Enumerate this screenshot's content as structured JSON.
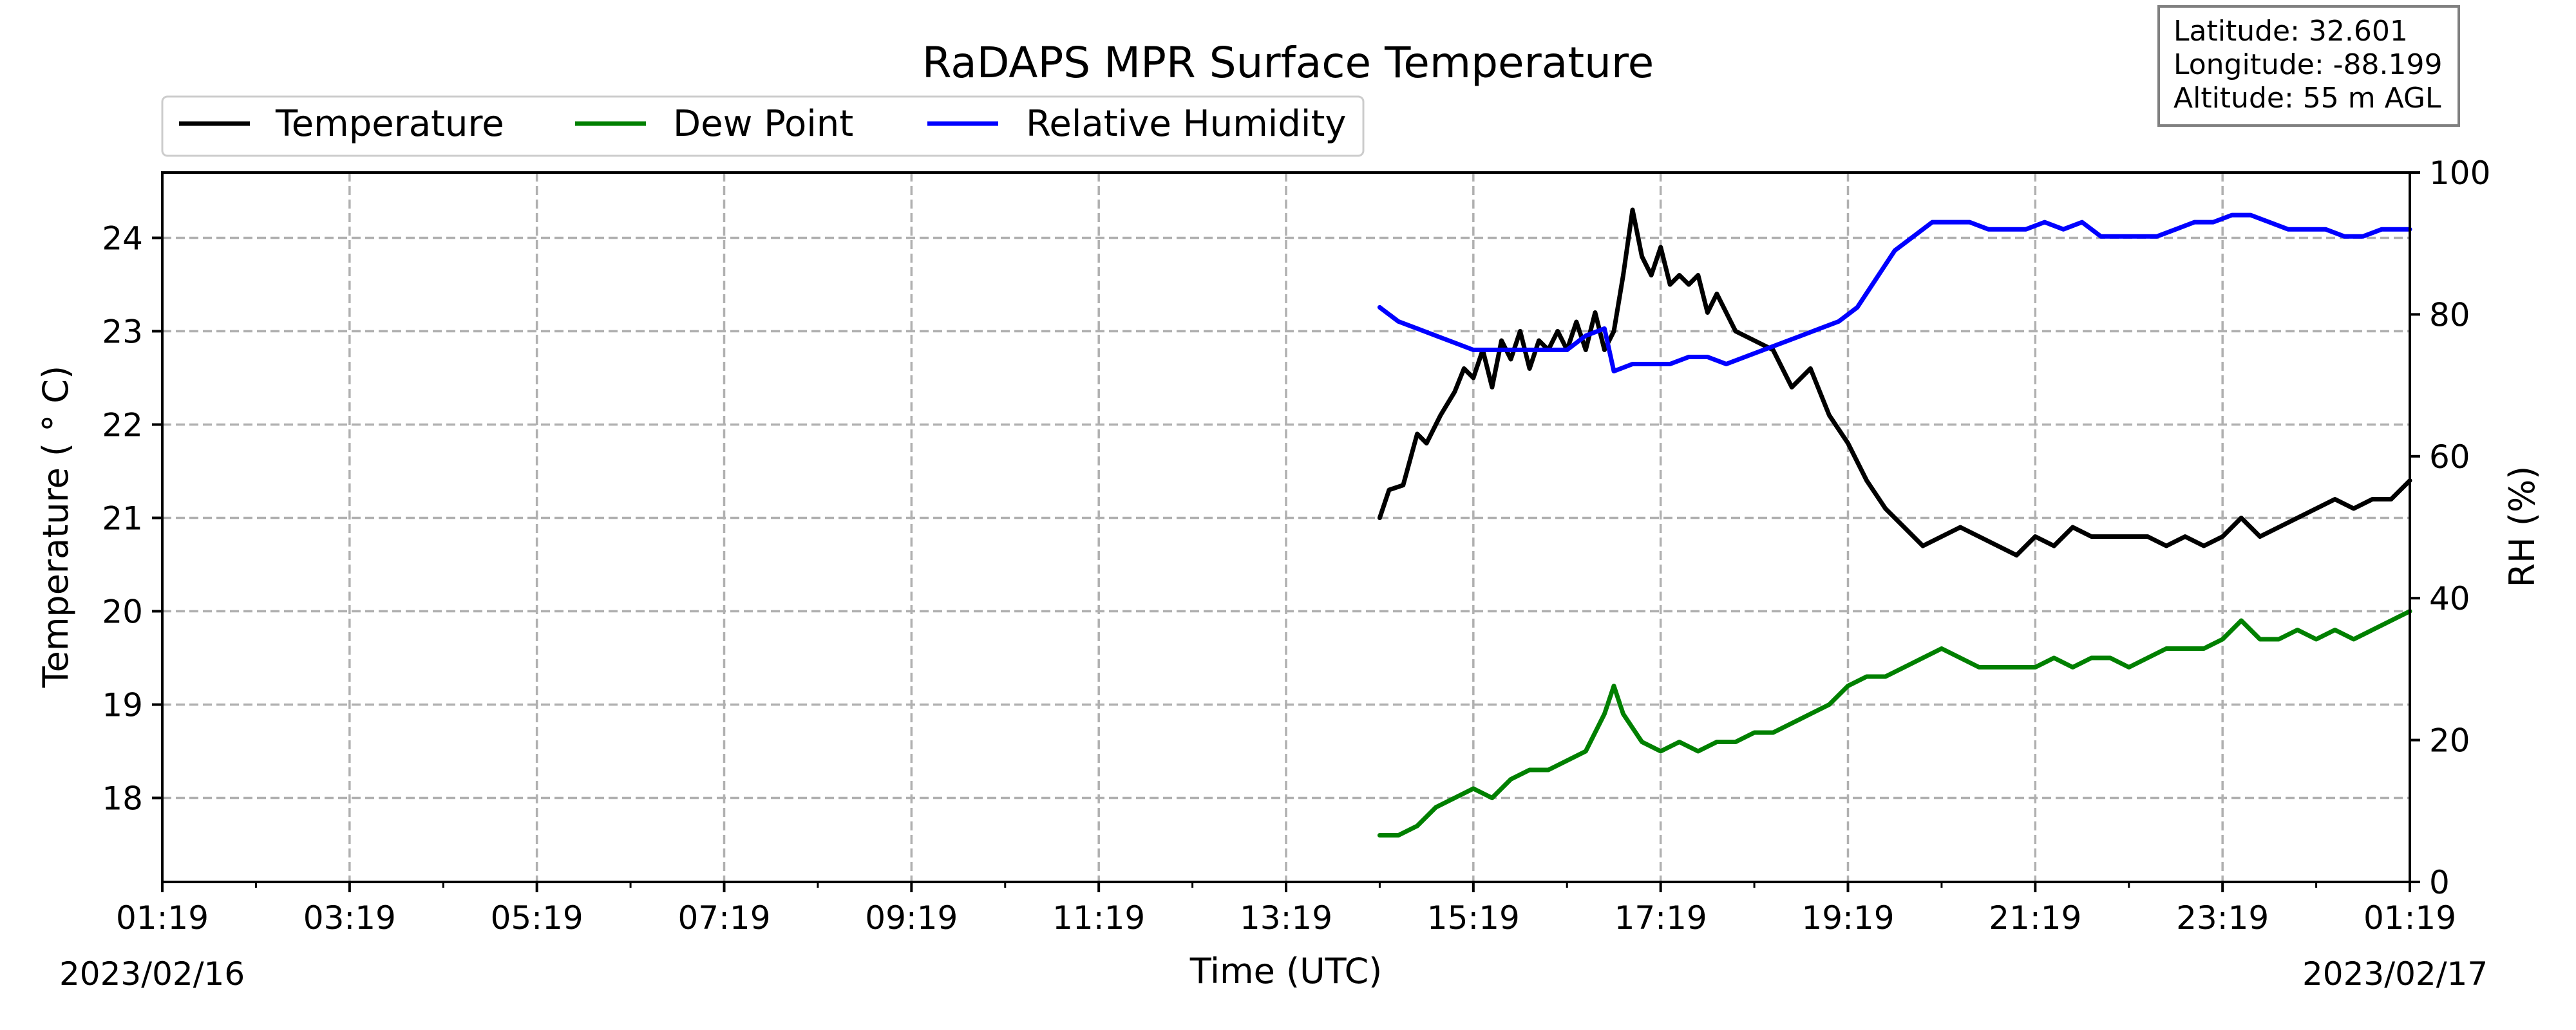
{
  "chart_data": {
    "type": "line",
    "title": "RaDAPS MPR Surface Temperature",
    "xlabel": "Time (UTC)",
    "ylabel": "Temperature ( $^\\circ$C)",
    "ylabel_display": "Temperature ( ° C)",
    "y2label": "RH (%)",
    "x_tick_labels": [
      "01:19",
      "03:19",
      "05:19",
      "07:19",
      "09:19",
      "11:19",
      "13:19",
      "15:19",
      "17:19",
      "19:19",
      "21:19",
      "23:19",
      "01:19"
    ],
    "x_start_date": "2023/02/16",
    "x_end_date": "2023/02/17",
    "xlim_hours": [
      0,
      24
    ],
    "ylim": [
      17.1,
      24.7
    ],
    "y_ticks": [
      "18",
      "19",
      "20",
      "21",
      "22",
      "23",
      "24"
    ],
    "y2lim": [
      0,
      100
    ],
    "y2_ticks": [
      "0",
      "20",
      "40",
      "60",
      "80",
      "100"
    ],
    "grid": true,
    "legend_position": "top-left, above plot",
    "info_box": [
      "Latitude: 32.601",
      "Longitude: -88.199",
      "Altitude: 55 m AGL"
    ],
    "series": [
      {
        "name": "Temperature",
        "color": "#000000",
        "axis": "left",
        "points": [
          [
            13.0,
            21.0
          ],
          [
            13.1,
            21.3
          ],
          [
            13.25,
            21.35
          ],
          [
            13.4,
            21.9
          ],
          [
            13.5,
            21.8
          ],
          [
            13.65,
            22.1
          ],
          [
            13.8,
            22.35
          ],
          [
            13.9,
            22.6
          ],
          [
            14.0,
            22.5
          ],
          [
            14.1,
            22.8
          ],
          [
            14.2,
            22.4
          ],
          [
            14.3,
            22.9
          ],
          [
            14.4,
            22.7
          ],
          [
            14.5,
            23.0
          ],
          [
            14.6,
            22.6
          ],
          [
            14.7,
            22.9
          ],
          [
            14.8,
            22.8
          ],
          [
            14.9,
            23.0
          ],
          [
            15.0,
            22.8
          ],
          [
            15.1,
            23.1
          ],
          [
            15.2,
            22.8
          ],
          [
            15.3,
            23.2
          ],
          [
            15.4,
            22.8
          ],
          [
            15.5,
            23.0
          ],
          [
            15.6,
            23.6
          ],
          [
            15.7,
            24.3
          ],
          [
            15.8,
            23.8
          ],
          [
            15.9,
            23.6
          ],
          [
            16.0,
            23.9
          ],
          [
            16.1,
            23.5
          ],
          [
            16.2,
            23.6
          ],
          [
            16.3,
            23.5
          ],
          [
            16.4,
            23.6
          ],
          [
            16.5,
            23.2
          ],
          [
            16.6,
            23.4
          ],
          [
            16.8,
            23.0
          ],
          [
            17.0,
            22.9
          ],
          [
            17.2,
            22.8
          ],
          [
            17.4,
            22.4
          ],
          [
            17.6,
            22.6
          ],
          [
            17.8,
            22.1
          ],
          [
            18.0,
            21.8
          ],
          [
            18.2,
            21.4
          ],
          [
            18.4,
            21.1
          ],
          [
            18.6,
            20.9
          ],
          [
            18.8,
            20.7
          ],
          [
            19.0,
            20.8
          ],
          [
            19.2,
            20.9
          ],
          [
            19.4,
            20.8
          ],
          [
            19.6,
            20.7
          ],
          [
            19.8,
            20.6
          ],
          [
            20.0,
            20.8
          ],
          [
            20.2,
            20.7
          ],
          [
            20.4,
            20.9
          ],
          [
            20.6,
            20.8
          ],
          [
            20.8,
            20.8
          ],
          [
            21.0,
            20.8
          ],
          [
            21.2,
            20.8
          ],
          [
            21.4,
            20.7
          ],
          [
            21.6,
            20.8
          ],
          [
            21.8,
            20.7
          ],
          [
            22.0,
            20.8
          ],
          [
            22.2,
            21.0
          ],
          [
            22.4,
            20.8
          ],
          [
            22.6,
            20.9
          ],
          [
            22.8,
            21.0
          ],
          [
            23.0,
            21.1
          ],
          [
            23.2,
            21.2
          ],
          [
            23.4,
            21.1
          ],
          [
            23.6,
            21.2
          ],
          [
            23.8,
            21.2
          ],
          [
            24.0,
            21.4
          ]
        ]
      },
      {
        "name": "Dew Point",
        "color": "#008000",
        "axis": "left",
        "points": [
          [
            13.0,
            17.6
          ],
          [
            13.2,
            17.6
          ],
          [
            13.4,
            17.7
          ],
          [
            13.6,
            17.9
          ],
          [
            13.8,
            18.0
          ],
          [
            14.0,
            18.1
          ],
          [
            14.2,
            18.0
          ],
          [
            14.4,
            18.2
          ],
          [
            14.6,
            18.3
          ],
          [
            14.8,
            18.3
          ],
          [
            15.0,
            18.4
          ],
          [
            15.2,
            18.5
          ],
          [
            15.4,
            18.9
          ],
          [
            15.5,
            19.2
          ],
          [
            15.6,
            18.9
          ],
          [
            15.8,
            18.6
          ],
          [
            16.0,
            18.5
          ],
          [
            16.2,
            18.6
          ],
          [
            16.4,
            18.5
          ],
          [
            16.6,
            18.6
          ],
          [
            16.8,
            18.6
          ],
          [
            17.0,
            18.7
          ],
          [
            17.2,
            18.7
          ],
          [
            17.4,
            18.8
          ],
          [
            17.6,
            18.9
          ],
          [
            17.8,
            19.0
          ],
          [
            18.0,
            19.2
          ],
          [
            18.2,
            19.3
          ],
          [
            18.4,
            19.3
          ],
          [
            18.6,
            19.4
          ],
          [
            18.8,
            19.5
          ],
          [
            19.0,
            19.6
          ],
          [
            19.2,
            19.5
          ],
          [
            19.4,
            19.4
          ],
          [
            19.6,
            19.4
          ],
          [
            19.8,
            19.4
          ],
          [
            20.0,
            19.4
          ],
          [
            20.2,
            19.5
          ],
          [
            20.4,
            19.4
          ],
          [
            20.6,
            19.5
          ],
          [
            20.8,
            19.5
          ],
          [
            21.0,
            19.4
          ],
          [
            21.2,
            19.5
          ],
          [
            21.4,
            19.6
          ],
          [
            21.6,
            19.6
          ],
          [
            21.8,
            19.6
          ],
          [
            22.0,
            19.7
          ],
          [
            22.2,
            19.9
          ],
          [
            22.4,
            19.7
          ],
          [
            22.6,
            19.7
          ],
          [
            22.8,
            19.8
          ],
          [
            23.0,
            19.7
          ],
          [
            23.2,
            19.8
          ],
          [
            23.4,
            19.7
          ],
          [
            23.6,
            19.8
          ],
          [
            23.8,
            19.9
          ],
          [
            24.0,
            20.0
          ]
        ]
      },
      {
        "name": "Relative Humidity",
        "color": "#0000ff",
        "axis": "right",
        "points": [
          [
            13.0,
            81
          ],
          [
            13.2,
            79
          ],
          [
            13.4,
            78
          ],
          [
            13.6,
            77
          ],
          [
            13.8,
            76
          ],
          [
            14.0,
            75
          ],
          [
            14.2,
            75
          ],
          [
            14.4,
            75
          ],
          [
            14.6,
            75
          ],
          [
            14.8,
            75
          ],
          [
            15.0,
            75
          ],
          [
            15.2,
            77
          ],
          [
            15.4,
            78
          ],
          [
            15.5,
            72
          ],
          [
            15.7,
            73
          ],
          [
            15.9,
            73
          ],
          [
            16.1,
            73
          ],
          [
            16.3,
            74
          ],
          [
            16.5,
            74
          ],
          [
            16.7,
            73
          ],
          [
            16.9,
            74
          ],
          [
            17.1,
            75
          ],
          [
            17.3,
            76
          ],
          [
            17.5,
            77
          ],
          [
            17.7,
            78
          ],
          [
            17.9,
            79
          ],
          [
            18.1,
            81
          ],
          [
            18.3,
            85
          ],
          [
            18.5,
            89
          ],
          [
            18.7,
            91
          ],
          [
            18.9,
            93
          ],
          [
            19.1,
            93
          ],
          [
            19.3,
            93
          ],
          [
            19.5,
            92
          ],
          [
            19.7,
            92
          ],
          [
            19.9,
            92
          ],
          [
            20.1,
            93
          ],
          [
            20.3,
            92
          ],
          [
            20.5,
            93
          ],
          [
            20.7,
            91
          ],
          [
            20.9,
            91
          ],
          [
            21.1,
            91
          ],
          [
            21.3,
            91
          ],
          [
            21.5,
            92
          ],
          [
            21.7,
            93
          ],
          [
            21.9,
            93
          ],
          [
            22.1,
            94
          ],
          [
            22.3,
            94
          ],
          [
            22.5,
            93
          ],
          [
            22.7,
            92
          ],
          [
            22.9,
            92
          ],
          [
            23.1,
            92
          ],
          [
            23.3,
            91
          ],
          [
            23.5,
            91
          ],
          [
            23.7,
            92
          ],
          [
            23.9,
            92
          ],
          [
            24.0,
            92
          ]
        ]
      }
    ]
  }
}
